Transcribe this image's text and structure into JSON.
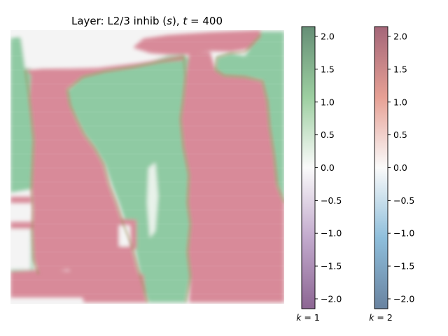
{
  "chart_data": {
    "type": "heatmap",
    "title_prefix": "Layer: L2/3 inhib (",
    "title_var": "s",
    "title_mid": "), ",
    "title_t": "t",
    "title_eq": " = 400",
    "grid": false,
    "axes_visible": false,
    "colorbars": [
      {
        "name": "k = 1",
        "label_var": "k",
        "label_eq": " = 1",
        "colormap": "PRGn",
        "alpha": 0.6,
        "vmin": -2.15,
        "vmax": 2.15,
        "ticks": [
          2.0,
          1.5,
          1.0,
          0.5,
          0.0,
          -0.5,
          -1.0,
          -1.5,
          -2.0
        ],
        "tick_labels": [
          "2.0",
          "1.5",
          "1.0",
          "0.5",
          "0.0",
          "−0.5",
          "−1.0",
          "−1.5",
          "−2.0"
        ],
        "stops": [
          "#00441b",
          "#5aae61",
          "#f7f7f7",
          "#9970ab",
          "#40004b"
        ]
      },
      {
        "name": "k = 2",
        "label_var": "k",
        "label_eq": " = 2",
        "colormap": "RdBu",
        "alpha": 0.6,
        "vmin": -2.15,
        "vmax": 2.15,
        "ticks": [
          2.0,
          1.5,
          1.0,
          0.5,
          0.0,
          -0.5,
          -1.0,
          -1.5,
          -2.0
        ],
        "tick_labels": [
          "2.0",
          "1.5",
          "1.0",
          "0.5",
          "0.0",
          "−0.5",
          "−1.0",
          "−1.5",
          "−2.0"
        ],
        "stops": [
          "#67001f",
          "#d6604d",
          "#f7f7f7",
          "#4393c3",
          "#053061"
        ]
      }
    ],
    "colors": {
      "k1_positive": "#8fcaa3",
      "k2_positive": "#d88a99",
      "background": "#f4f4f4",
      "boundary": "#a08f5e"
    }
  }
}
